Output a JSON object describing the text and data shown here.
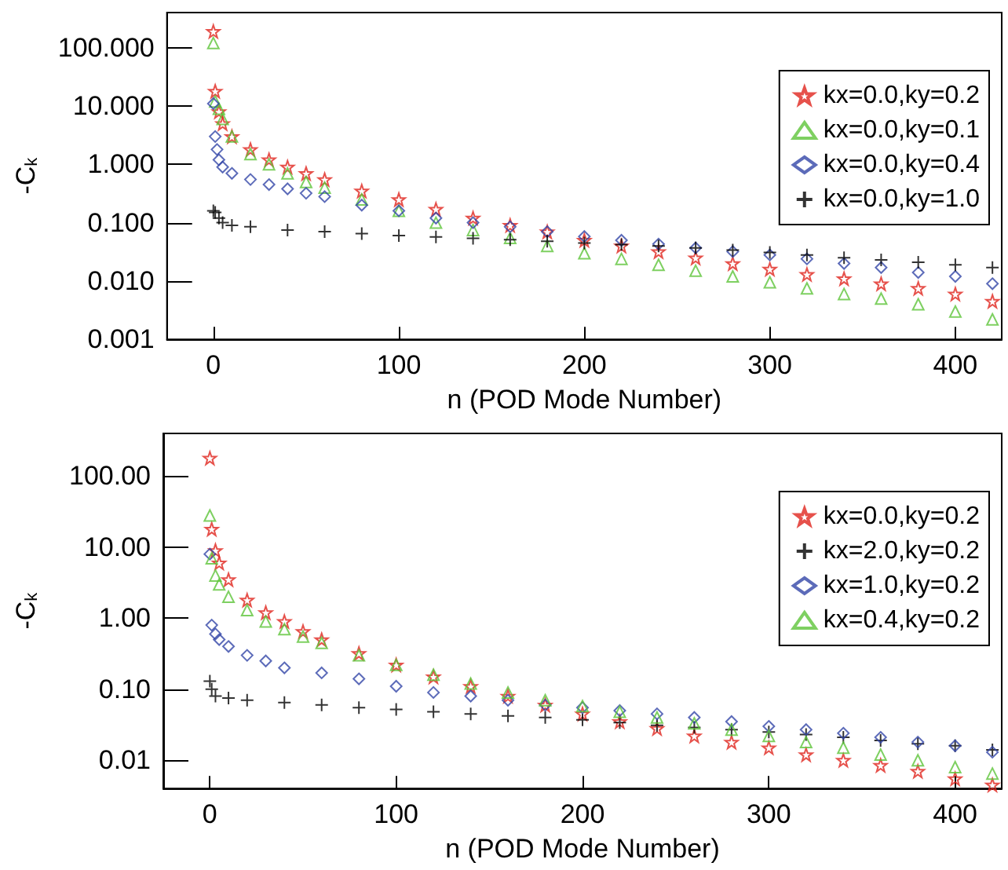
{
  "chart_data": [
    {
      "type": "scatter",
      "xlabel": "n (POD Mode Number)",
      "ylabel": "-C$_{k}$",
      "log": "y",
      "legend": "top right",
      "grid": false,
      "xlim": [
        -25,
        425
      ],
      "xticks": [
        0,
        100,
        200,
        300,
        400
      ],
      "ylim": [
        0.001,
        400
      ],
      "yticks": [
        {
          "value": 0.001,
          "label": "0.001"
        },
        {
          "value": 0.01,
          "label": "0.010"
        },
        {
          "value": 0.1,
          "label": "0.100"
        },
        {
          "value": 1,
          "label": "1.000"
        },
        {
          "value": 10,
          "label": "10.000"
        },
        {
          "value": 100,
          "label": "100.000"
        }
      ],
      "series": [
        {
          "name": "kx=0.0,ky=0.2",
          "color": "#e0261e",
          "marker": "star",
          "x": [
            0,
            1,
            3,
            5,
            10,
            20,
            30,
            40,
            50,
            60,
            80,
            100,
            120,
            140,
            160,
            180,
            200,
            220,
            240,
            260,
            280,
            300,
            320,
            340,
            360,
            380,
            400,
            420
          ],
          "values": [
            190,
            18,
            8,
            5,
            3,
            1.8,
            1.2,
            0.9,
            0.7,
            0.55,
            0.35,
            0.25,
            0.17,
            0.12,
            0.09,
            0.07,
            0.05,
            0.04,
            0.032,
            0.025,
            0.02,
            0.016,
            0.013,
            0.011,
            0.009,
            0.0075,
            0.006,
            0.0045
          ]
        },
        {
          "name": "kx=0.0,ky=0.1",
          "color": "#5ec43a",
          "marker": "triangle",
          "x": [
            0,
            1,
            3,
            5,
            10,
            20,
            30,
            40,
            50,
            60,
            80,
            100,
            120,
            140,
            160,
            180,
            200,
            220,
            240,
            260,
            280,
            300,
            320,
            340,
            360,
            380,
            400,
            420
          ],
          "values": [
            120,
            12,
            9,
            6,
            3,
            1.5,
            1.0,
            0.7,
            0.5,
            0.4,
            0.25,
            0.16,
            0.1,
            0.075,
            0.055,
            0.04,
            0.03,
            0.024,
            0.019,
            0.015,
            0.012,
            0.0095,
            0.0075,
            0.006,
            0.005,
            0.004,
            0.003,
            0.0022
          ]
        },
        {
          "name": "kx=0.0,ky=0.4",
          "color": "#3346a8",
          "marker": "diamond",
          "x": [
            0,
            1,
            2,
            3,
            5,
            10,
            20,
            30,
            40,
            50,
            60,
            80,
            100,
            120,
            140,
            160,
            180,
            200,
            220,
            240,
            260,
            280,
            300,
            320,
            340,
            360,
            380,
            400,
            420
          ],
          "values": [
            11,
            3,
            1.8,
            1.2,
            0.9,
            0.7,
            0.55,
            0.45,
            0.38,
            0.32,
            0.28,
            0.2,
            0.16,
            0.12,
            0.1,
            0.085,
            0.07,
            0.058,
            0.05,
            0.043,
            0.037,
            0.032,
            0.028,
            0.024,
            0.02,
            0.017,
            0.014,
            0.012,
            0.009
          ]
        },
        {
          "name": "kx=0.0,ky=1.0",
          "color": "#000000",
          "marker": "cross",
          "x": [
            0,
            1,
            3,
            5,
            10,
            20,
            40,
            60,
            80,
            100,
            120,
            140,
            160,
            180,
            200,
            220,
            240,
            260,
            280,
            300,
            320,
            340,
            360,
            380,
            400,
            420
          ],
          "values": [
            0.16,
            0.15,
            0.12,
            0.1,
            0.09,
            0.085,
            0.075,
            0.07,
            0.065,
            0.06,
            0.057,
            0.054,
            0.051,
            0.048,
            0.045,
            0.042,
            0.04,
            0.037,
            0.034,
            0.031,
            0.028,
            0.025,
            0.023,
            0.021,
            0.019,
            0.017
          ]
        }
      ]
    },
    {
      "type": "scatter",
      "xlabel": "n (POD Mode Number)",
      "ylabel": "-C$_{k}$",
      "log": "y",
      "legend": "top right",
      "grid": false,
      "xlim": [
        -25,
        425
      ],
      "xticks": [
        0,
        100,
        200,
        300,
        400
      ],
      "ylim": [
        0.004,
        400
      ],
      "yticks": [
        {
          "value": 0.01,
          "label": "0.01"
        },
        {
          "value": 0.1,
          "label": "0.10"
        },
        {
          "value": 1,
          "label": "1.00"
        },
        {
          "value": 10,
          "label": "10.00"
        },
        {
          "value": 100,
          "label": "100.00"
        }
      ],
      "series": [
        {
          "name": "kx=0.0,ky=0.2",
          "color": "#e0261e",
          "marker": "star",
          "x": [
            0,
            1,
            3,
            5,
            10,
            20,
            30,
            40,
            50,
            60,
            80,
            100,
            120,
            140,
            160,
            180,
            200,
            220,
            240,
            260,
            280,
            300,
            320,
            340,
            360,
            380,
            400,
            420
          ],
          "values": [
            180,
            18,
            9,
            6,
            3.5,
            1.8,
            1.2,
            0.9,
            0.65,
            0.5,
            0.32,
            0.22,
            0.15,
            0.11,
            0.08,
            0.06,
            0.045,
            0.035,
            0.028,
            0.022,
            0.018,
            0.015,
            0.012,
            0.01,
            0.0085,
            0.007,
            0.0055,
            0.0045
          ]
        },
        {
          "name": "kx=2.0,ky=0.2",
          "color": "#000000",
          "marker": "cross",
          "x": [
            0,
            1,
            3,
            10,
            20,
            40,
            60,
            80,
            100,
            120,
            140,
            160,
            180,
            200,
            220,
            240,
            260,
            280,
            300,
            320,
            340,
            360,
            380,
            400,
            420
          ],
          "values": [
            0.13,
            0.1,
            0.08,
            0.075,
            0.07,
            0.065,
            0.06,
            0.055,
            0.052,
            0.048,
            0.045,
            0.042,
            0.04,
            0.037,
            0.034,
            0.031,
            0.029,
            0.027,
            0.025,
            0.023,
            0.021,
            0.019,
            0.017,
            0.016,
            0.014
          ]
        },
        {
          "name": "kx=1.0,ky=0.2",
          "color": "#3346a8",
          "marker": "diamond",
          "x": [
            0,
            1,
            3,
            5,
            10,
            20,
            30,
            40,
            60,
            80,
            100,
            120,
            140,
            160,
            180,
            200,
            220,
            240,
            260,
            280,
            300,
            320,
            340,
            360,
            380,
            400,
            420
          ],
          "values": [
            8,
            0.8,
            0.6,
            0.5,
            0.4,
            0.3,
            0.25,
            0.2,
            0.17,
            0.14,
            0.11,
            0.09,
            0.08,
            0.07,
            0.06,
            0.055,
            0.05,
            0.045,
            0.04,
            0.035,
            0.03,
            0.027,
            0.024,
            0.021,
            0.018,
            0.016,
            0.013
          ]
        },
        {
          "name": "kx=0.4,ky=0.2",
          "color": "#5ec43a",
          "marker": "triangle",
          "x": [
            0,
            1,
            3,
            5,
            10,
            20,
            30,
            40,
            50,
            60,
            80,
            100,
            120,
            140,
            160,
            180,
            200,
            220,
            240,
            260,
            280,
            300,
            320,
            340,
            360,
            380,
            400,
            420
          ],
          "values": [
            28,
            7,
            4,
            3,
            2,
            1.3,
            0.9,
            0.7,
            0.55,
            0.45,
            0.3,
            0.22,
            0.16,
            0.12,
            0.09,
            0.07,
            0.058,
            0.048,
            0.04,
            0.033,
            0.027,
            0.022,
            0.018,
            0.015,
            0.012,
            0.01,
            0.008,
            0.0065
          ]
        }
      ]
    }
  ]
}
